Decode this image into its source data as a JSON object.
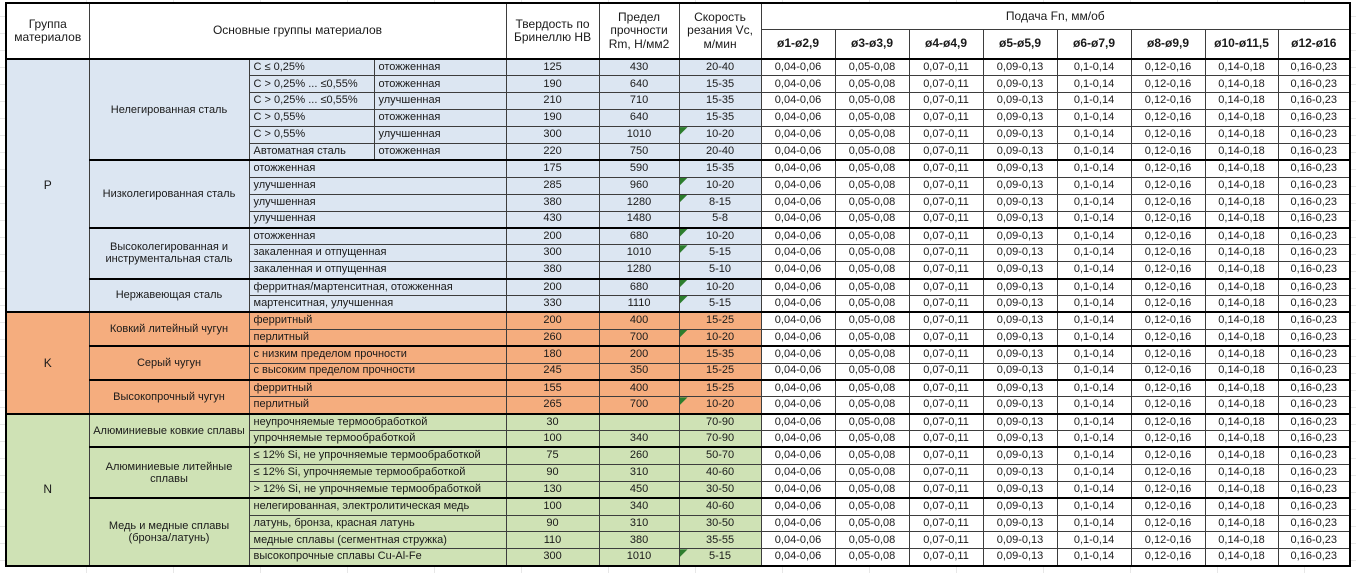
{
  "table": {
    "header": {
      "group_col": "Группа материалов",
      "main_col": "Основные группы материалов",
      "hardness_col": "Твердость по Бринеллю HB",
      "strength_col": "Предел прочности Rm, Н/мм2",
      "speed_col": "Скорость резания Vc, м/мин",
      "feed_col": "Подача Fn, мм/об",
      "feed_subcols": [
        "ø1-ø2,9",
        "ø3-ø3,9",
        "ø4-ø4,9",
        "ø5-ø5,9",
        "ø6-ø7,9",
        "ø8-ø9,9",
        "ø10-ø11,5",
        "ø12-ø16"
      ]
    },
    "feed_values": [
      "0,04-0,06",
      "0,05-0,08",
      "0,07-0,11",
      "0,09-0,13",
      "0,1-0,14",
      "0,12-0,16",
      "0,14-0,18",
      "0,16-0,23"
    ],
    "colors": {
      "group_p": "#dce6f2",
      "group_k": "#f5ad7e",
      "group_n": "#cfe2b5",
      "note_marker": "#2d7d2d"
    },
    "groups": [
      {
        "code": "P",
        "color": "#dce6f2",
        "subgroups": [
          {
            "name": "Нелегированная сталь",
            "rows": [
              {
                "detail": "C ≤ 0,25%",
                "state": "отожженная",
                "hb": "125",
                "rm": "430",
                "vc": "20-40",
                "note": false
              },
              {
                "detail": "C > 0,25% ... ≤0,55%",
                "state": "отожженная",
                "hb": "190",
                "rm": "640",
                "vc": "15-35",
                "note": false
              },
              {
                "detail": "C > 0,25% ... ≤0,55%",
                "state": "улучшенная",
                "hb": "210",
                "rm": "710",
                "vc": "15-35",
                "note": false
              },
              {
                "detail": "C > 0,55%",
                "state": "отожженная",
                "hb": "190",
                "rm": "640",
                "vc": "15-35",
                "note": false
              },
              {
                "detail": "C > 0,55%",
                "state": "улучшенная",
                "hb": "300",
                "rm": "1010",
                "vc": "10-20",
                "note": true
              },
              {
                "detail": "Автоматная сталь",
                "state": "отожженная",
                "hb": "220",
                "rm": "750",
                "vc": "20-40",
                "note": false
              }
            ]
          },
          {
            "name": "Низколегированная сталь",
            "rows": [
              {
                "detail": "отожженная",
                "state": null,
                "hb": "175",
                "rm": "590",
                "vc": "15-35",
                "note": false
              },
              {
                "detail": "улучшенная",
                "state": null,
                "hb": "285",
                "rm": "960",
                "vc": "10-20",
                "note": true
              },
              {
                "detail": "улучшенная",
                "state": null,
                "hb": "380",
                "rm": "1280",
                "vc": "8-15",
                "note": true
              },
              {
                "detail": "улучшенная",
                "state": null,
                "hb": "430",
                "rm": "1480",
                "vc": "5-8",
                "note": false
              }
            ]
          },
          {
            "name": "Высоколегированная и инструментальная сталь",
            "rows": [
              {
                "detail": "отожженная",
                "state": null,
                "hb": "200",
                "rm": "680",
                "vc": "10-20",
                "note": true
              },
              {
                "detail": "закаленная и отпущенная",
                "state": null,
                "hb": "300",
                "rm": "1010",
                "vc": "5-15",
                "note": true
              },
              {
                "detail": "закаленная и отпущенная",
                "state": null,
                "hb": "380",
                "rm": "1280",
                "vc": "5-10",
                "note": false
              }
            ]
          },
          {
            "name": "Нержавеющая сталь",
            "rows": [
              {
                "detail": "ферритная/мартенситная, отожженная",
                "state": null,
                "hb": "200",
                "rm": "680",
                "vc": "10-20",
                "note": true
              },
              {
                "detail": "мартенситная, улучшенная",
                "state": null,
                "hb": "330",
                "rm": "1110",
                "vc": "5-15",
                "note": true
              }
            ]
          }
        ]
      },
      {
        "code": "K",
        "color": "#f5ad7e",
        "subgroups": [
          {
            "name": "Ковкий литейный чугун",
            "rows": [
              {
                "detail": "ферритный",
                "state": null,
                "hb": "200",
                "rm": "400",
                "vc": "15-25",
                "note": false
              },
              {
                "detail": "перлитный",
                "state": null,
                "hb": "260",
                "rm": "700",
                "vc": "10-20",
                "note": true
              }
            ]
          },
          {
            "name": "Серый чугун",
            "rows": [
              {
                "detail": "с низким пределом прочности",
                "state": null,
                "hb": "180",
                "rm": "200",
                "vc": "15-35",
                "note": false
              },
              {
                "detail": "с высоким пределом прочности",
                "state": null,
                "hb": "245",
                "rm": "350",
                "vc": "15-25",
                "note": false
              }
            ]
          },
          {
            "name": "Высокопрочный чугун",
            "rows": [
              {
                "detail": "ферритный",
                "state": null,
                "hb": "155",
                "rm": "400",
                "vc": "15-25",
                "note": false
              },
              {
                "detail": "перлитный",
                "state": null,
                "hb": "265",
                "rm": "700",
                "vc": "10-20",
                "note": true
              }
            ]
          }
        ]
      },
      {
        "code": "N",
        "color": "#cfe2b5",
        "subgroups": [
          {
            "name": "Алюминиевые ковкие сплавы",
            "rows": [
              {
                "detail": "неупрочняемые термообработкой",
                "state": null,
                "hb": "30",
                "rm": "",
                "vc": "70-90",
                "note": false
              },
              {
                "detail": "упрочняемые термообработкой",
                "state": null,
                "hb": "100",
                "rm": "340",
                "vc": "70-90",
                "note": false
              }
            ]
          },
          {
            "name": "Алюминиевые литейные сплавы",
            "rows": [
              {
                "detail": "≤ 12% Si, не упрочняемые термообработкой",
                "state": null,
                "hb": "75",
                "rm": "260",
                "vc": "50-70",
                "note": false
              },
              {
                "detail": "≤ 12% Si, упрочняемые термообработкой",
                "state": null,
                "hb": "90",
                "rm": "310",
                "vc": "40-60",
                "note": false
              },
              {
                "detail": "> 12% Si, не упрочняемые термообработкой",
                "state": null,
                "hb": "130",
                "rm": "450",
                "vc": "30-50",
                "note": false
              }
            ]
          },
          {
            "name": "Медь и медные сплавы (бронза/латунь)",
            "rows": [
              {
                "detail": "нелегированная, электролитическая медь",
                "state": null,
                "hb": "100",
                "rm": "340",
                "vc": "40-60",
                "note": false
              },
              {
                "detail": "латунь, бронза, красная латунь",
                "state": null,
                "hb": "90",
                "rm": "310",
                "vc": "30-50",
                "note": false
              },
              {
                "detail": "медные сплавы (сегментная стружка)",
                "state": null,
                "hb": "110",
                "rm": "380",
                "vc": "35-55",
                "note": false
              },
              {
                "detail": "высокопрочные сплавы Cu-Al-Fe",
                "state": null,
                "hb": "300",
                "rm": "1010",
                "vc": "5-15",
                "note": true
              }
            ]
          }
        ]
      }
    ]
  }
}
